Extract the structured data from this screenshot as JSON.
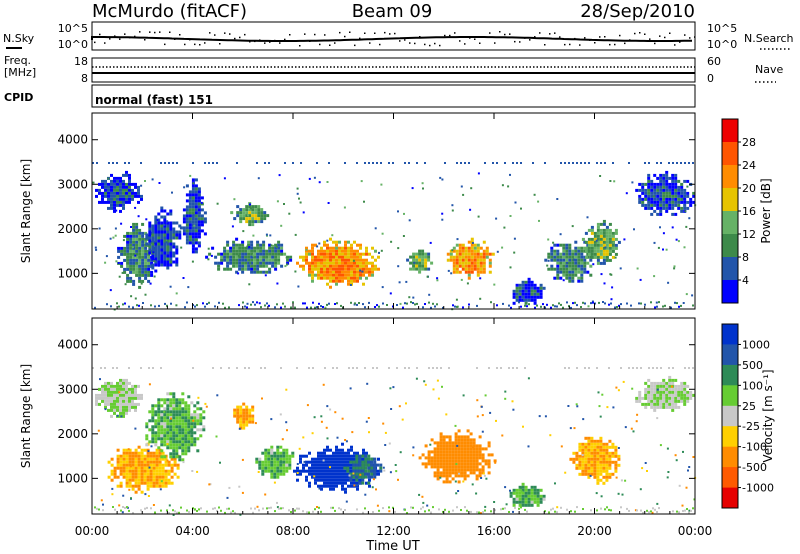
{
  "header": {
    "station": "McMurdo (fitACF)",
    "beam": "Beam 09",
    "date": "28/Sep/2010"
  },
  "top_panel": {
    "nsky_label": "N.Sky",
    "nsky_ticks": [
      "10^5",
      "10^0"
    ],
    "nsearch_label": "N.Search",
    "nsearch_ticks": [
      "10^5",
      "10^0"
    ],
    "freq_label_1": "Freq.",
    "freq_label_2": "[MHz]",
    "freq_ticks": [
      "18",
      "8"
    ],
    "nave_label": "Nave",
    "nave_ticks": [
      "60",
      "0"
    ],
    "cpid_label": "CPID",
    "cpid_value": "normal (fast) 151"
  },
  "colors": {
    "power_scale": [
      "#0000ff",
      "#2255aa",
      "#3d8a4a",
      "#66b266",
      "#e6c400",
      "#ff8c00",
      "#ff5500",
      "#ee0000"
    ],
    "velocity_scale": [
      "#0033cc",
      "#2255aa",
      "#2e8b57",
      "#66cc33",
      "#c8c8c8",
      "#ffd000",
      "#ff8c00",
      "#ff5a00",
      "#e60000"
    ]
  },
  "chart_data": [
    {
      "type": "heatmap",
      "quantity": "Power",
      "xlabel": "",
      "ylabel": "Slant Range [km]",
      "ylim": [
        200,
        4600
      ],
      "yticks": [
        "4000",
        "3000",
        "2000",
        "1000"
      ],
      "xticks": [
        "00:00",
        "04:00",
        "08:00",
        "12:00",
        "16:00",
        "20:00",
        "00:00"
      ],
      "colorbar_label": "Power [dB]",
      "colorbar_ticks": [
        "28",
        "24",
        "20",
        "16",
        "12",
        "8",
        "4"
      ],
      "regions": [
        {
          "t0": 0.0,
          "t1": 2.0,
          "r0": 2400,
          "r1": 3300,
          "value": 8
        },
        {
          "t0": 1.0,
          "t1": 2.5,
          "r0": 700,
          "r1": 2200,
          "value": 12
        },
        {
          "t0": 2.0,
          "t1": 3.5,
          "r0": 1000,
          "r1": 2500,
          "value": 8
        },
        {
          "t0": 3.5,
          "t1": 4.5,
          "r0": 1400,
          "r1": 3200,
          "value": 8
        },
        {
          "t0": 5.5,
          "t1": 7.0,
          "r0": 2100,
          "r1": 2600,
          "value": 16
        },
        {
          "t0": 4.5,
          "t1": 8.0,
          "r0": 1000,
          "r1": 1800,
          "value": 12
        },
        {
          "t0": 8.0,
          "t1": 11.5,
          "r0": 700,
          "r1": 1800,
          "value": 24
        },
        {
          "t0": 12.5,
          "t1": 13.5,
          "r0": 1000,
          "r1": 1600,
          "value": 16
        },
        {
          "t0": 14.0,
          "t1": 16.0,
          "r0": 900,
          "r1": 1800,
          "value": 24
        },
        {
          "t0": 16.5,
          "t1": 18.0,
          "r0": 300,
          "r1": 900,
          "value": 8
        },
        {
          "t0": 18.0,
          "t1": 20.0,
          "r0": 800,
          "r1": 1800,
          "value": 12
        },
        {
          "t0": 19.5,
          "t1": 21.0,
          "r0": 1200,
          "r1": 2200,
          "value": 16
        },
        {
          "t0": 21.5,
          "t1": 24.0,
          "r0": 2300,
          "r1": 3300,
          "value": 8
        }
      ]
    },
    {
      "type": "heatmap",
      "quantity": "Velocity",
      "xlabel": "Time UT",
      "ylabel": "Slant Range [km]",
      "ylim": [
        200,
        4600
      ],
      "yticks": [
        "4000",
        "3000",
        "2000",
        "1000"
      ],
      "xticks": [
        "00:00",
        "04:00",
        "08:00",
        "12:00",
        "16:00",
        "20:00",
        "00:00"
      ],
      "colorbar_label": "Velocity [m s⁻¹]",
      "colorbar_ticks": [
        "1000",
        "500",
        "100",
        "25",
        "-25",
        "-100",
        "-500",
        "-1000"
      ],
      "regions": [
        {
          "t0": 0.0,
          "t1": 2.0,
          "r0": 2400,
          "r1": 3300,
          "value": 0
        },
        {
          "t0": 0.5,
          "t1": 3.5,
          "r0": 700,
          "r1": 1800,
          "value": -300
        },
        {
          "t0": 2.0,
          "t1": 4.5,
          "r0": 1400,
          "r1": 3000,
          "value": 50
        },
        {
          "t0": 5.5,
          "t1": 6.5,
          "r0": 2100,
          "r1": 2700,
          "value": -300
        },
        {
          "t0": 6.5,
          "t1": 8.0,
          "r0": 1000,
          "r1": 1800,
          "value": 50
        },
        {
          "t0": 8.0,
          "t1": 11.5,
          "r0": 700,
          "r1": 1800,
          "value": 800
        },
        {
          "t0": 10.0,
          "t1": 11.5,
          "r0": 900,
          "r1": 1600,
          "value": 300
        },
        {
          "t0": 13.0,
          "t1": 16.0,
          "r0": 900,
          "r1": 2100,
          "value": -600
        },
        {
          "t0": 16.5,
          "t1": 18.0,
          "r0": 300,
          "r1": 900,
          "value": 50
        },
        {
          "t0": 19.0,
          "t1": 21.0,
          "r0": 900,
          "r1": 2000,
          "value": -300
        },
        {
          "t0": 21.5,
          "t1": 24.0,
          "r0": 2500,
          "r1": 3300,
          "value": 0
        }
      ]
    }
  ]
}
